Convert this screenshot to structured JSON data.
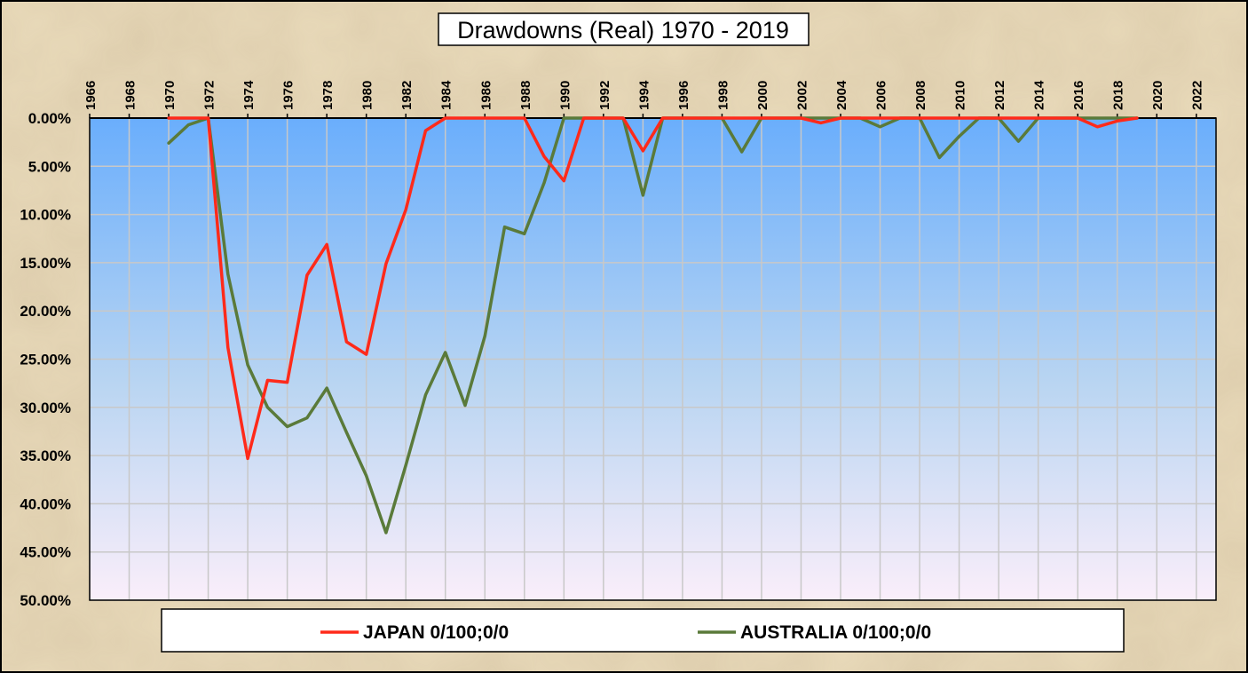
{
  "chart_data": {
    "type": "line",
    "title": "Drawdowns (Real) 1970 - 2019",
    "xlabel": "",
    "ylabel": "",
    "x_ticks": [
      "1966",
      "1968",
      "1970",
      "1972",
      "1974",
      "1976",
      "1978",
      "1980",
      "1982",
      "1984",
      "1986",
      "1988",
      "1990",
      "1992",
      "1994",
      "1996",
      "1998",
      "2000",
      "2002",
      "2004",
      "2006",
      "2008",
      "2010",
      "2012",
      "2014",
      "2016",
      "2018",
      "2020",
      "2022"
    ],
    "xlim": [
      1966,
      2023
    ],
    "y_ticks": [
      "0.00%",
      "5.00%",
      "10.00%",
      "15.00%",
      "20.00%",
      "25.00%",
      "30.00%",
      "35.00%",
      "40.00%",
      "45.00%",
      "50.00%"
    ],
    "ylim": [
      0,
      50
    ],
    "y_inverted": true,
    "grid": true,
    "legend_position": "bottom",
    "series": [
      {
        "name": "JAPAN 0/100;0/0",
        "color": "#ff2a1a",
        "x": [
          1970,
          1971,
          1972,
          1973,
          1974,
          1975,
          1976,
          1977,
          1978,
          1979,
          1980,
          1981,
          1982,
          1983,
          1984,
          1985,
          1986,
          1987,
          1988,
          1989,
          1990,
          1991,
          1992,
          1993,
          1994,
          1995,
          1996,
          1997,
          1998,
          1999,
          2000,
          2001,
          2002,
          2003,
          2004,
          2005,
          2006,
          2007,
          2008,
          2009,
          2010,
          2011,
          2012,
          2013,
          2014,
          2015,
          2016,
          2017,
          2018,
          2019
        ],
        "values": [
          0,
          0,
          0,
          23.8,
          35.3,
          27.2,
          27.4,
          16.3,
          13.1,
          23.2,
          24.5,
          15.1,
          9.5,
          1.3,
          0,
          0,
          0,
          0,
          0,
          4.0,
          6.5,
          0,
          0,
          0,
          3.4,
          0,
          0,
          0,
          0,
          0,
          0,
          0,
          0,
          0.5,
          0,
          0,
          0,
          0,
          0,
          0,
          0,
          0,
          0,
          0,
          0,
          0,
          0,
          0.9,
          0.3,
          0
        ]
      },
      {
        "name": "AUSTRALIA 0/100;0/0",
        "color": "#5a7a3a",
        "x": [
          1970,
          1971,
          1972,
          1973,
          1974,
          1975,
          1976,
          1977,
          1978,
          1979,
          1980,
          1981,
          1982,
          1983,
          1984,
          1985,
          1986,
          1987,
          1988,
          1989,
          1990,
          1991,
          1992,
          1993,
          1994,
          1995,
          1996,
          1997,
          1998,
          1999,
          2000,
          2001,
          2002,
          2003,
          2004,
          2005,
          2006,
          2007,
          2008,
          2009,
          2010,
          2011,
          2012,
          2013,
          2014,
          2015,
          2016,
          2017,
          2018,
          2019
        ],
        "values": [
          2.6,
          0.7,
          0,
          16.2,
          25.6,
          30.0,
          32.0,
          31.1,
          28.0,
          32.6,
          37.1,
          43.0,
          36.0,
          28.7,
          24.3,
          29.8,
          22.6,
          11.3,
          12.0,
          6.7,
          0,
          0,
          0,
          0,
          8.0,
          0,
          0,
          0,
          0,
          3.5,
          0,
          0,
          0,
          0,
          0,
          0,
          0.9,
          0,
          0,
          4.1,
          1.9,
          0,
          0,
          2.4,
          0,
          0,
          0,
          0,
          0,
          0
        ]
      }
    ]
  },
  "colors": {
    "background": "#e9d8b6",
    "plot_top": "#6aaefc",
    "plot_bottom": "#faeefa",
    "grid": "#c8c8c8"
  }
}
